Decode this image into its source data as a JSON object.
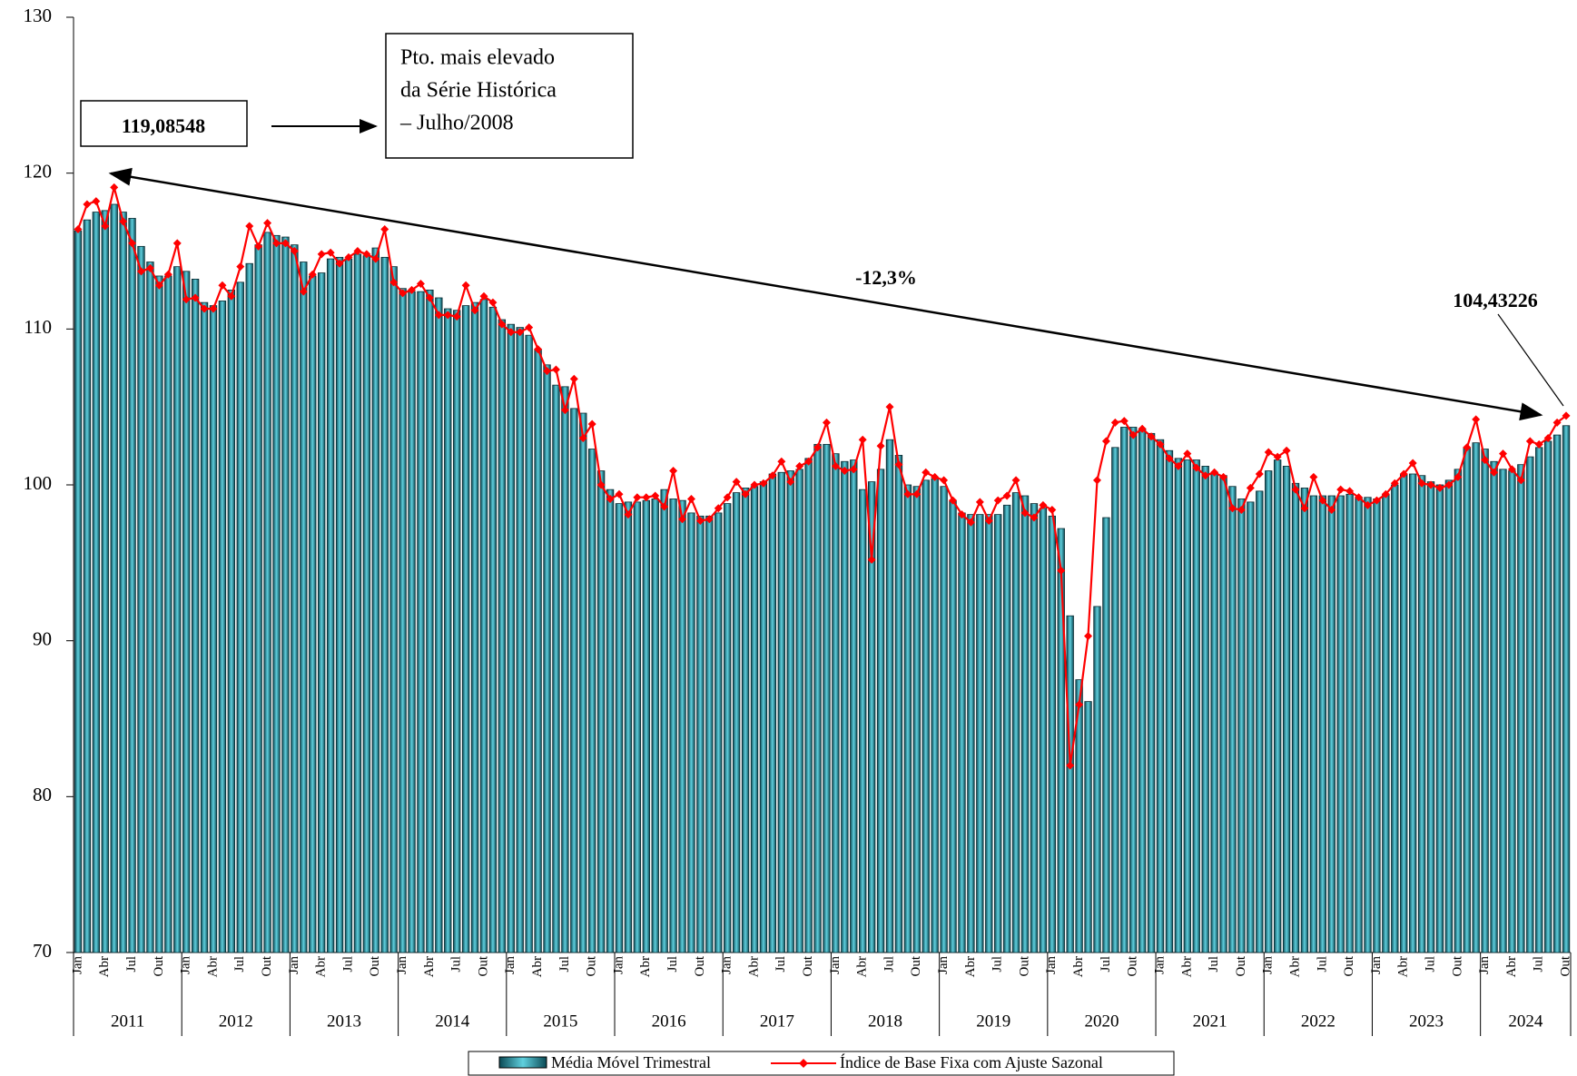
{
  "chart_data": {
    "type": "bar_line",
    "ylim": [
      70,
      130
    ],
    "yticks": [
      70,
      80,
      90,
      100,
      110,
      120,
      130
    ],
    "categories": [
      "Jan",
      null,
      null,
      "Abr",
      null,
      null,
      "Jul",
      null,
      null,
      "Out",
      null,
      null,
      "Jan",
      null,
      null,
      "Abr",
      null,
      null,
      "Jul",
      null,
      null,
      "Out",
      null,
      null,
      "Jan",
      null,
      null,
      "Abr",
      null,
      null,
      "Jul",
      null,
      null,
      "Out",
      null,
      null,
      "Jan",
      null,
      null,
      "Abr",
      null,
      null,
      "Jul",
      null,
      null,
      "Out",
      null,
      null,
      "Jan",
      null,
      null,
      "Abr",
      null,
      null,
      "Jul",
      null,
      null,
      "Out",
      null,
      null,
      "Jan",
      null,
      null,
      "Abr",
      null,
      null,
      "Jul",
      null,
      null,
      "Out",
      null,
      null,
      "Jan",
      null,
      null,
      "Abr",
      null,
      null,
      "Jul",
      null,
      null,
      "Out",
      null,
      null,
      "Jan",
      null,
      null,
      "Abr",
      null,
      null,
      "Jul",
      null,
      null,
      "Out",
      null,
      null,
      "Jan",
      null,
      null,
      "Abr",
      null,
      null,
      "Jul",
      null,
      null,
      "Out",
      null,
      null,
      "Jan",
      null,
      null,
      "Abr",
      null,
      null,
      "Jul",
      null,
      null,
      "Out",
      null,
      null,
      "Jan",
      null,
      null,
      "Abr",
      null,
      null,
      "Jul",
      null,
      null,
      "Out",
      null,
      null,
      "Jan",
      null,
      null,
      "Abr",
      null,
      null,
      "Jul",
      null,
      null,
      "Out",
      null,
      null,
      "Jan",
      null,
      null,
      "Abr",
      null,
      null,
      "Jul",
      null,
      null,
      "Out",
      null,
      null,
      "Jan",
      null,
      null,
      "Abr",
      null,
      null,
      "Jul",
      null,
      null,
      "Out"
    ],
    "years": [
      "2011",
      "2012",
      "2013",
      "2014",
      "2015",
      "2016",
      "2017",
      "2018",
      "2019",
      "2020",
      "2021",
      "2022",
      "2023",
      "2024"
    ],
    "series": [
      {
        "name": "Média Móvel Trimestral",
        "kind": "bar",
        "color": "#1f8a9a",
        "values": [
          116.3,
          117.0,
          117.5,
          117.6,
          118.0,
          117.5,
          117.1,
          115.3,
          114.3,
          113.4,
          113.4,
          114.0,
          113.7,
          113.2,
          111.7,
          111.5,
          111.8,
          112.5,
          113.0,
          114.2,
          115.4,
          116.2,
          116.0,
          115.9,
          115.4,
          114.3,
          113.4,
          113.6,
          114.5,
          114.6,
          114.5,
          114.8,
          114.7,
          115.2,
          114.6,
          114.0,
          112.6,
          112.4,
          112.4,
          112.5,
          112.0,
          111.3,
          111.2,
          111.5,
          111.7,
          111.9,
          111.4,
          110.6,
          110.3,
          110.1,
          109.6,
          108.7,
          107.7,
          106.4,
          106.3,
          104.9,
          104.6,
          102.3,
          100.9,
          99.7,
          98.8,
          98.9,
          98.9,
          99.0,
          99.1,
          99.7,
          99.1,
          99.0,
          98.2,
          98.0,
          98.0,
          98.2,
          98.8,
          99.5,
          99.8,
          99.9,
          100.2,
          100.7,
          100.8,
          100.9,
          101.0,
          101.7,
          102.6,
          102.6,
          102.0,
          101.5,
          101.6,
          99.7,
          100.2,
          101.0,
          102.9,
          101.9,
          100.0,
          99.9,
          100.3,
          100.4,
          99.9,
          99.0,
          98.2,
          98.1,
          98.1,
          98.1,
          98.1,
          98.7,
          99.5,
          99.3,
          98.8,
          98.5,
          98.0,
          97.2,
          91.6,
          87.5,
          86.1,
          92.2,
          97.9,
          102.4,
          103.7,
          103.7,
          103.6,
          103.3,
          102.9,
          102.2,
          101.7,
          101.6,
          101.6,
          101.2,
          100.8,
          100.6,
          99.9,
          99.1,
          98.9,
          99.6,
          100.9,
          101.6,
          101.2,
          100.1,
          99.8,
          99.3,
          99.3,
          99.3,
          99.3,
          99.4,
          99.2,
          99.2,
          99.1,
          99.4,
          100.0,
          100.7,
          100.7,
          100.6,
          100.2,
          100.0,
          100.3,
          101.0,
          102.4,
          102.7,
          102.3,
          101.5,
          101.0,
          100.9,
          101.3,
          101.8,
          102.4,
          102.8,
          103.2,
          103.8
        ]
      },
      {
        "name": "Índice de Base Fixa com Ajuste Sazonal",
        "kind": "line",
        "color": "#ff0000",
        "values": [
          116.4,
          118.0,
          118.2,
          116.6,
          119.08548,
          116.9,
          115.5,
          113.7,
          113.9,
          112.8,
          113.5,
          115.5,
          111.9,
          112.0,
          111.3,
          111.3,
          112.8,
          112.1,
          114.0,
          116.6,
          115.3,
          116.8,
          115.5,
          115.5,
          115.0,
          112.4,
          113.5,
          114.8,
          114.9,
          114.2,
          114.6,
          115.0,
          114.8,
          114.5,
          116.4,
          113.0,
          112.3,
          112.5,
          112.9,
          112.0,
          110.9,
          110.9,
          110.8,
          112.8,
          111.2,
          112.1,
          111.7,
          110.3,
          109.8,
          109.8,
          110.1,
          108.7,
          107.3,
          107.4,
          104.8,
          106.8,
          103.0,
          103.9,
          100.0,
          99.1,
          99.4,
          98.1,
          99.2,
          99.2,
          99.3,
          98.6,
          100.9,
          97.8,
          99.1,
          97.7,
          97.8,
          98.5,
          99.2,
          100.2,
          99.4,
          100.0,
          100.1,
          100.6,
          101.5,
          100.2,
          101.2,
          101.5,
          102.4,
          104.0,
          101.2,
          100.9,
          101.0,
          102.9,
          95.2,
          102.5,
          105.0,
          101.3,
          99.4,
          99.4,
          100.8,
          100.5,
          100.3,
          99.0,
          98.1,
          97.6,
          98.9,
          97.7,
          99.0,
          99.3,
          100.3,
          98.2,
          97.9,
          98.7,
          98.4,
          94.5,
          82.0,
          85.9,
          90.3,
          100.3,
          102.8,
          104.0,
          104.1,
          103.2,
          103.6,
          103.1,
          102.6,
          101.7,
          101.2,
          102.0,
          101.1,
          100.6,
          100.8,
          100.5,
          98.5,
          98.4,
          99.8,
          100.7,
          102.1,
          101.8,
          102.2,
          99.7,
          98.5,
          100.5,
          99.0,
          98.4,
          99.7,
          99.6,
          99.2,
          98.7,
          99.0,
          99.4,
          100.1,
          100.7,
          101.4,
          100.1,
          100.0,
          99.8,
          100.0,
          100.5,
          102.4,
          104.2,
          101.6,
          100.8,
          102.0,
          101.0,
          100.3,
          102.8,
          102.6,
          103.0,
          104.0,
          104.43226
        ]
      }
    ],
    "annotations": {
      "peak_note": [
        "Pto. mais elevado",
        "da Série Histórica",
        "– Julho/2008"
      ],
      "peak_value": "119,08548",
      "change": "-12,3%",
      "last_value": "104,43226"
    }
  }
}
